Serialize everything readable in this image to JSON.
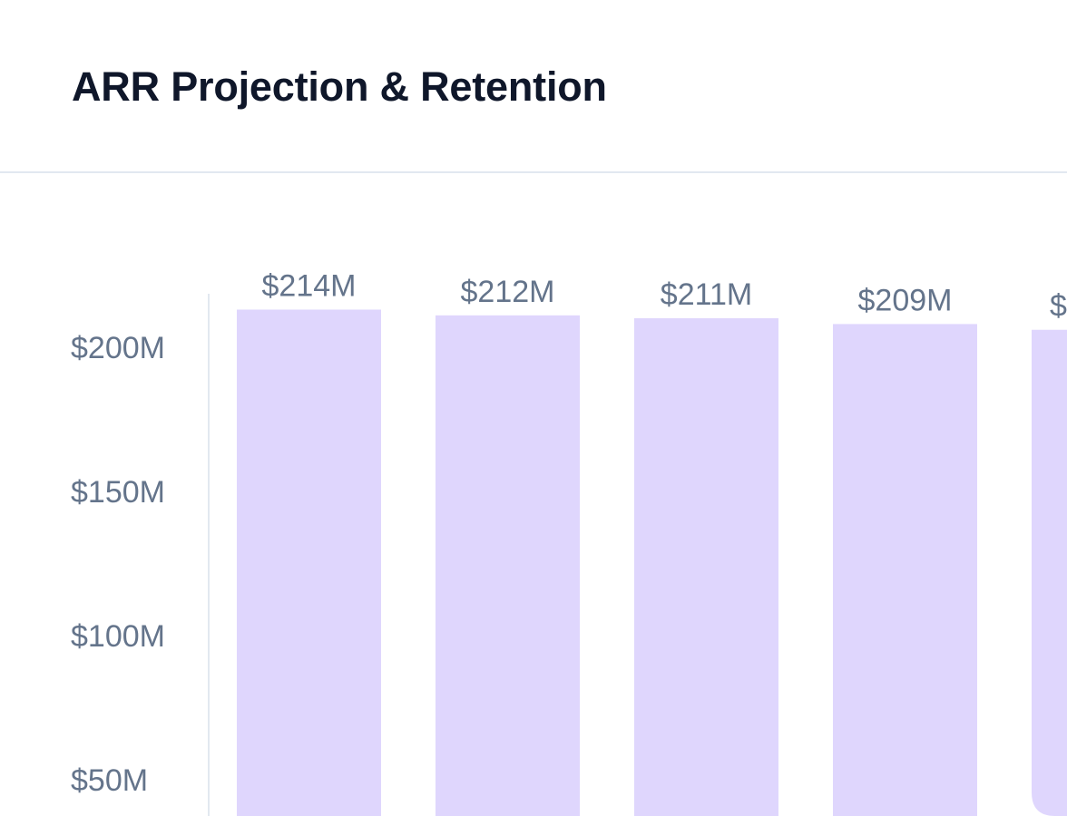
{
  "card": {
    "title": "ARR Projection & Retention"
  },
  "chart_data": {
    "type": "bar",
    "title": "ARR Projection & Retention",
    "values": [
      214,
      212,
      211,
      209,
      207
    ],
    "data_labels": [
      "$214M",
      "$212M",
      "$211M",
      "$209M",
      "$"
    ],
    "y_ticks": [
      {
        "value": 200,
        "label": "$200M"
      },
      {
        "value": 150,
        "label": "$150M"
      },
      {
        "value": 100,
        "label": "$100M"
      },
      {
        "value": 50,
        "label": "$50M"
      }
    ],
    "units": "$M",
    "bar_color": "#dfd6fd",
    "axis_color": "#e2e8f0",
    "label_color": "#64748b",
    "grid": false
  }
}
